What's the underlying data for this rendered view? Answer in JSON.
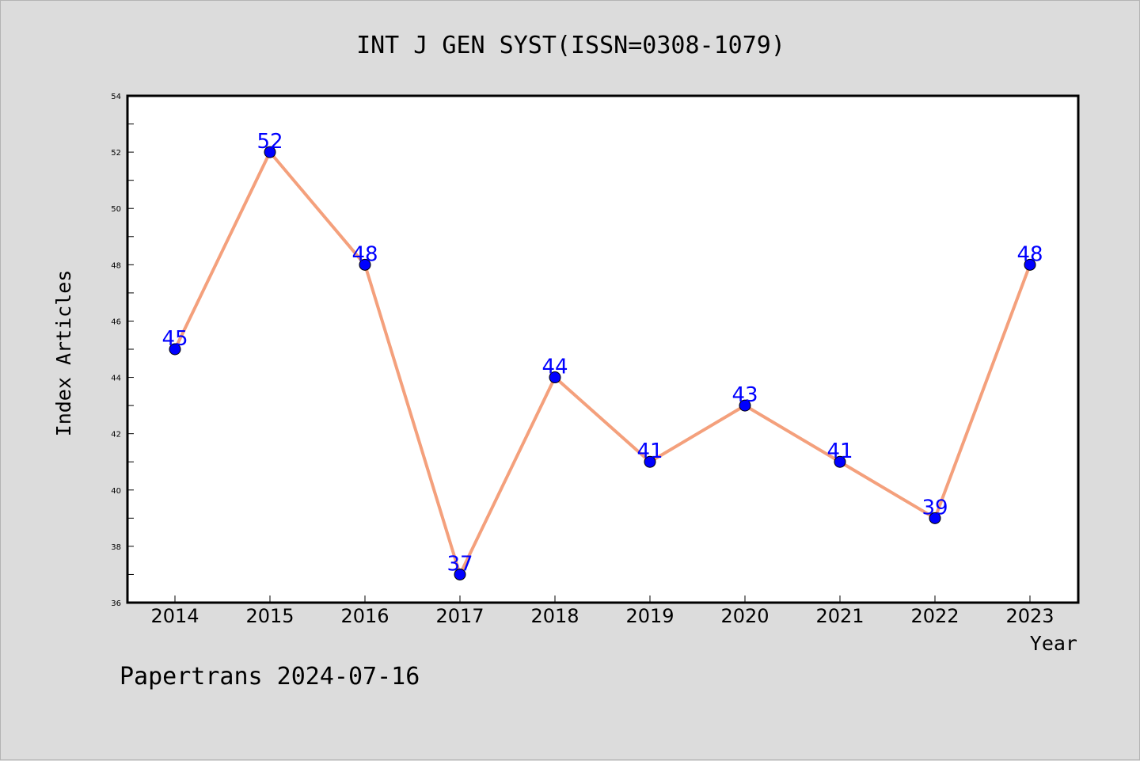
{
  "chart_data": {
    "type": "line",
    "title": "INT J GEN SYST(ISSN=0308-1079)",
    "xlabel": "Year",
    "ylabel": "Index Articles",
    "categories": [
      "2014",
      "2015",
      "2016",
      "2017",
      "2018",
      "2019",
      "2020",
      "2021",
      "2022",
      "2023"
    ],
    "series": [
      {
        "values": [
          45,
          52,
          48,
          37,
          44,
          41,
          43,
          41,
          39,
          48
        ]
      }
    ],
    "ylim": [
      36,
      54
    ],
    "yticks": [
      "36",
      "38",
      "40",
      "42",
      "44",
      "46",
      "48",
      "50",
      "52",
      "54"
    ],
    "grid": false,
    "legend": "none",
    "colors": {
      "line": "#f4a07c",
      "marker": "#0000ff",
      "data_label": "#0000ff",
      "plot_background": "#ffffff",
      "figure_background": "#dcdcdc"
    }
  },
  "footer": "Papertrans 2024-07-16"
}
